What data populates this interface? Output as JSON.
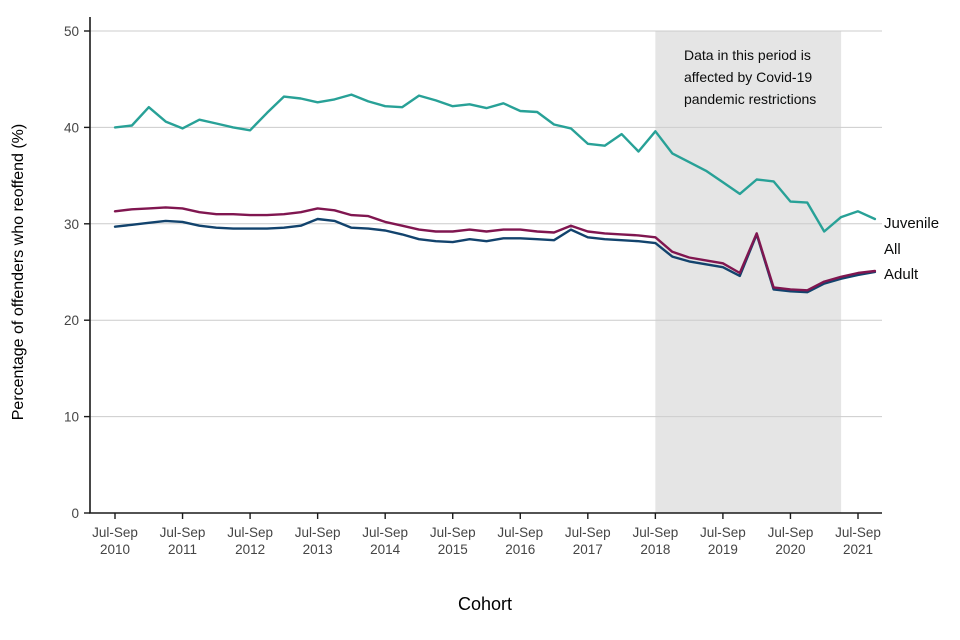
{
  "chart_data": {
    "type": "line",
    "title": "",
    "xlabel": "Cohort",
    "ylabel": "Percentage of offenders who reoffend (%)",
    "ylim": [
      0,
      50
    ],
    "yticks": [
      0,
      10,
      20,
      30,
      40,
      50
    ],
    "grid": "horizontal",
    "legend_position": "right-of-plot",
    "x_quarter_label": "Jul-Sep",
    "x_years": [
      "2010",
      "2011",
      "2012",
      "2013",
      "2014",
      "2015",
      "2016",
      "2017",
      "2018",
      "2019",
      "2020",
      "2021"
    ],
    "points_per_year": 4,
    "series": [
      {
        "name": "Juvenile",
        "color": "#28A197",
        "values": [
          40.0,
          40.2,
          42.1,
          40.6,
          39.9,
          40.8,
          40.4,
          40.0,
          39.7,
          41.5,
          43.2,
          43.0,
          42.6,
          42.9,
          43.4,
          42.7,
          42.2,
          42.1,
          43.3,
          42.8,
          42.2,
          42.4,
          42.0,
          42.5,
          41.7,
          41.6,
          40.3,
          39.9,
          38.3,
          38.1,
          39.3,
          37.5,
          39.6,
          37.3,
          36.4,
          35.5,
          34.3,
          33.1,
          34.6,
          34.4,
          32.3,
          32.2,
          29.2,
          30.7,
          31.3,
          30.5
        ]
      },
      {
        "name": "All",
        "color": "#801650",
        "values": [
          31.3,
          31.5,
          31.6,
          31.7,
          31.6,
          31.2,
          31.0,
          31.0,
          30.9,
          30.9,
          31.0,
          31.2,
          31.6,
          31.4,
          30.9,
          30.8,
          30.2,
          29.8,
          29.4,
          29.2,
          29.2,
          29.4,
          29.2,
          29.4,
          29.4,
          29.2,
          29.1,
          29.8,
          29.2,
          29.0,
          28.9,
          28.8,
          28.6,
          27.1,
          26.5,
          26.2,
          25.9,
          24.9,
          29.0,
          23.4,
          23.2,
          23.1,
          24.0,
          24.5,
          24.9,
          25.1
        ]
      },
      {
        "name": "Adult",
        "color": "#12436D",
        "values": [
          29.7,
          29.9,
          30.1,
          30.3,
          30.2,
          29.8,
          29.6,
          29.5,
          29.5,
          29.5,
          29.6,
          29.8,
          30.5,
          30.3,
          29.6,
          29.5,
          29.3,
          28.9,
          28.4,
          28.2,
          28.1,
          28.4,
          28.2,
          28.5,
          28.5,
          28.4,
          28.3,
          29.4,
          28.6,
          28.4,
          28.3,
          28.2,
          28.0,
          26.6,
          26.1,
          25.8,
          25.5,
          24.6,
          28.9,
          23.2,
          23.0,
          22.9,
          23.8,
          24.3,
          24.7,
          25.0
        ]
      }
    ],
    "shaded_region": {
      "start_index": 32,
      "end_index": 43,
      "color": "#e5e5e5",
      "annotation_lines": [
        "Data in this period is",
        "affected by Covid-19",
        "pandemic restrictions"
      ]
    }
  }
}
